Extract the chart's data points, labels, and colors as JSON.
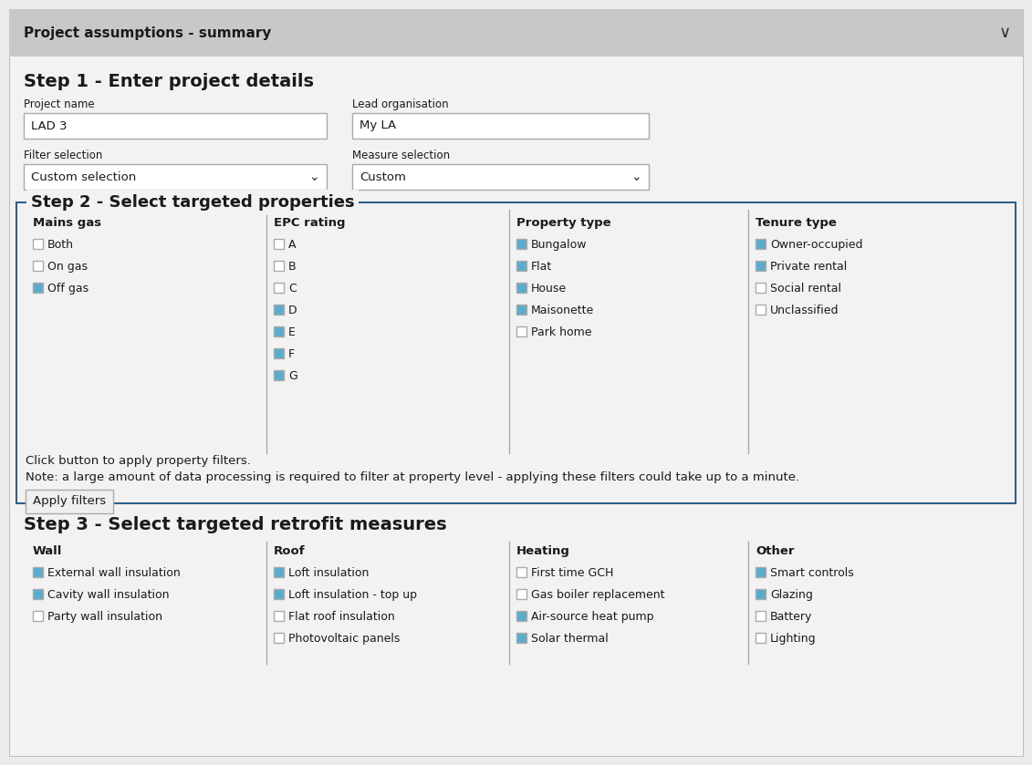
{
  "bg_color": "#ebebeb",
  "panel_bg": "#f2f2f2",
  "white": "#ffffff",
  "header_bg": "#c8c8c8",
  "border_color": "#aaaaaa",
  "dark_border": "#2e5f8a",
  "checkbox_checked_color": "#5aaccc",
  "checkbox_unchecked_color": "#ffffff",
  "text_color": "#1a1a1a",
  "button_bg": "#efefef",
  "header_title": "Project assumptions - summary",
  "step1_title": "Step 1 - Enter project details",
  "step2_title": "Step 2 - Select targeted properties",
  "step3_title": "Step 3 - Select targeted retrofit measures",
  "proj_name_label": "Project name",
  "proj_name_value": "LAD 3",
  "lead_org_label": "Lead organisation",
  "lead_org_value": "My LA",
  "filter_sel_label": "Filter selection",
  "filter_sel_value": "Custom selection",
  "measure_sel_label": "Measure selection",
  "measure_sel_value": "Custom",
  "mains_gas_header": "Mains gas",
  "mains_gas_items": [
    "Both",
    "On gas",
    "Off gas"
  ],
  "mains_gas_checked": [
    false,
    false,
    true
  ],
  "epc_header": "EPC rating",
  "epc_items": [
    "A",
    "B",
    "C",
    "D",
    "E",
    "F",
    "G"
  ],
  "epc_checked": [
    false,
    false,
    false,
    true,
    true,
    true,
    true
  ],
  "property_header": "Property type",
  "property_items": [
    "Bungalow",
    "Flat",
    "House",
    "Maisonette",
    "Park home"
  ],
  "property_checked": [
    true,
    true,
    true,
    true,
    false
  ],
  "tenure_header": "Tenure type",
  "tenure_items": [
    "Owner-occupied",
    "Private rental",
    "Social rental",
    "Unclassified"
  ],
  "tenure_checked": [
    true,
    true,
    false,
    false
  ],
  "filter_note1": "Click button to apply property filters.",
  "filter_note2": "Note: a large amount of data processing is required to filter at property level - applying these filters could take up to a minute.",
  "apply_btn": "Apply filters",
  "wall_header": "Wall",
  "wall_items": [
    "External wall insulation",
    "Cavity wall insulation",
    "Party wall insulation"
  ],
  "wall_checked": [
    true,
    true,
    false
  ],
  "roof_header": "Roof",
  "roof_items": [
    "Loft insulation",
    "Loft insulation - top up",
    "Flat roof insulation",
    "Photovoltaic panels"
  ],
  "roof_checked": [
    true,
    true,
    false,
    false
  ],
  "heating_header": "Heating",
  "heating_items": [
    "First time GCH",
    "Gas boiler replacement",
    "Air-source heat pump",
    "Solar thermal"
  ],
  "heating_checked": [
    false,
    false,
    true,
    true
  ],
  "other_header": "Other",
  "other_items": [
    "Smart controls",
    "Glazing",
    "Battery",
    "Lighting"
  ],
  "other_checked": [
    true,
    true,
    false,
    false
  ]
}
